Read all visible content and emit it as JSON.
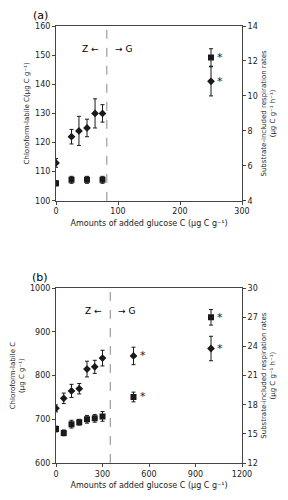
{
  "chart_data": [
    {
      "type": "scatter",
      "title": "(a)",
      "x_label": "Amounts of added glucose C (μg C g⁻¹)",
      "y_label": "Chloroform-labile C(μg C g⁻¹)",
      "y2_label": "Substrate-included respiration rates\n(μg C g⁻¹ h⁻¹)",
      "xlim": [
        0,
        300
      ],
      "xticks": [
        0,
        100,
        200,
        300
      ],
      "ylim": [
        100,
        160
      ],
      "yticks": [
        100,
        110,
        120,
        130,
        140,
        150,
        160
      ],
      "y2lim": [
        4,
        14
      ],
      "y2ticks": [
        4,
        6,
        8,
        10,
        12,
        14
      ],
      "grid": false,
      "series": [
        {
          "marker": "diamond",
          "color": "#1a1a1a",
          "x": [
            0,
            25,
            37,
            50,
            63,
            75,
            250
          ],
          "values": [
            113,
            122,
            124,
            125,
            130,
            130,
            141
          ],
          "errors": [
            1.5,
            2.5,
            5,
            3,
            5,
            3,
            5
          ]
        },
        {
          "marker": "square",
          "color": "#1a1a1a",
          "axis": "y2",
          "x": [
            0,
            25,
            50,
            75,
            250
          ],
          "values": [
            5.0,
            5.2,
            5.2,
            5.2,
            12.2
          ],
          "errors": [
            0.15,
            0.2,
            0.2,
            0.2,
            0.5
          ]
        }
      ],
      "reference_line": {
        "x": 82,
        "color": "#888888",
        "line_style": "dashed",
        "labels": [
          "Z ←",
          "→ G"
        ]
      },
      "annotations": [
        {
          "text": "*",
          "x": 250,
          "y": 141,
          "axis": "y"
        },
        {
          "text": "*",
          "x": 250,
          "y": 12.2,
          "axis": "y2"
        }
      ]
    },
    {
      "type": "scatter",
      "title": "(b)",
      "x_label": "Amounts of added glucose C (μg C g⁻¹)",
      "y_label": "Chloroform-labile C\n(μg C g⁻¹)",
      "y2_label": "Substrate-included respiration rates\n(μg C g⁻¹ h⁻¹)",
      "xlim": [
        0,
        1200
      ],
      "xticks": [
        0,
        300,
        600,
        900,
        1200
      ],
      "ylim": [
        600,
        1000
      ],
      "yticks": [
        600,
        700,
        800,
        900,
        1000
      ],
      "y2lim": [
        12,
        30
      ],
      "y2ticks": [
        12,
        15,
        18,
        21,
        24,
        27,
        30
      ],
      "grid": false,
      "series": [
        {
          "marker": "diamond",
          "color": "#1a1a1a",
          "x": [
            0,
            50,
            100,
            150,
            200,
            250,
            300,
            500,
            1000
          ],
          "values": [
            725,
            748,
            765,
            770,
            815,
            820,
            840,
            845,
            862
          ],
          "errors": [
            8,
            12,
            15,
            12,
            18,
            15,
            18,
            20,
            28
          ]
        },
        {
          "marker": "square",
          "color": "#1a1a1a",
          "axis": "y2",
          "x": [
            0,
            50,
            100,
            150,
            200,
            250,
            300,
            500,
            1000
          ],
          "values": [
            15.5,
            15.1,
            16.0,
            16.2,
            16.5,
            16.6,
            16.8,
            18.8,
            27.0
          ],
          "errors": [
            0.3,
            0.3,
            0.4,
            0.3,
            0.4,
            0.4,
            0.5,
            0.5,
            0.8
          ]
        }
      ],
      "reference_line": {
        "x": 350,
        "color": "#888888",
        "line_style": "dashed",
        "labels": [
          "Z ←",
          "→ G"
        ]
      },
      "annotations": [
        {
          "text": "*",
          "x": 500,
          "y": 845,
          "axis": "y"
        },
        {
          "text": "*",
          "x": 1000,
          "y": 862,
          "axis": "y"
        },
        {
          "text": "*",
          "x": 500,
          "y": 18.8,
          "axis": "y2"
        },
        {
          "text": "*",
          "x": 1000,
          "y": 27.0,
          "axis": "y2"
        }
      ]
    }
  ]
}
